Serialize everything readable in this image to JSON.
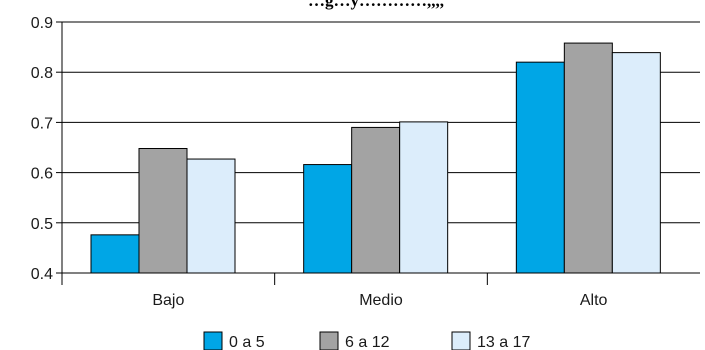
{
  "chart_data": {
    "type": "bar",
    "title": "…g…y…………,,,,",
    "xlabel": "",
    "ylabel": "",
    "categories": [
      "Bajo",
      "Medio",
      "Alto"
    ],
    "series": [
      {
        "name": "0 a 5",
        "values": [
          0.476,
          0.616,
          0.82
        ],
        "color": "#00a6e6"
      },
      {
        "name": "6 a 12",
        "values": [
          0.648,
          0.69,
          0.858
        ],
        "color": "#a3a3a3"
      },
      {
        "name": "13 a 17",
        "values": [
          0.627,
          0.701,
          0.839
        ],
        "color": "#dcedfb"
      }
    ],
    "ylim": [
      0.4,
      0.9
    ],
    "yticks": [
      "0.4",
      "0.5",
      "0.6",
      "0.7",
      "0.8",
      "0.9"
    ],
    "grid": true,
    "legend_position": "bottom-center"
  }
}
